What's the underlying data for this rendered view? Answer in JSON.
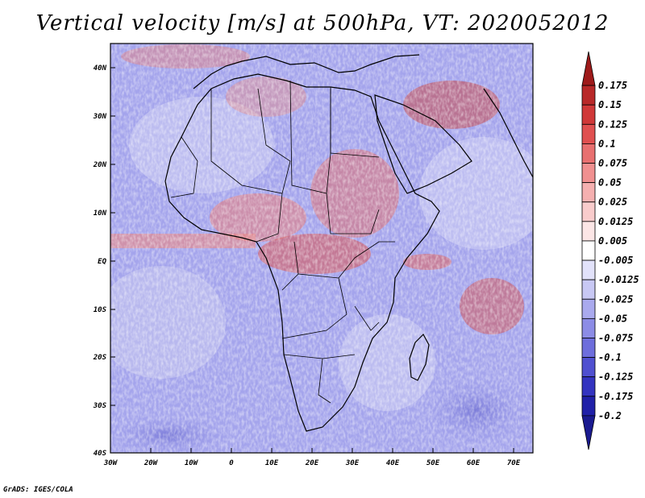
{
  "title": "Vertical velocity [m/s] at 500hPa, VT: 2020052012",
  "footer": "GrADS: IGES/COLA",
  "map": {
    "lat_labels": [
      "40N",
      "30N",
      "20N",
      "10N",
      "EQ",
      "10S",
      "20S",
      "30S",
      "40S"
    ],
    "lon_labels": [
      "30W",
      "20W",
      "10W",
      "0",
      "10E",
      "20E",
      "30E",
      "40E",
      "50E",
      "60E",
      "70E"
    ],
    "lat_range": [
      -40,
      45
    ],
    "lon_range": [
      -30,
      75
    ]
  },
  "colorbar": {
    "levels": [
      "0.175",
      "0.15",
      "0.125",
      "0.1",
      "0.075",
      "0.05",
      "0.025",
      "0.0125",
      "0.005",
      "-0.005",
      "-0.0125",
      "-0.025",
      "-0.05",
      "-0.075",
      "-0.1",
      "-0.125",
      "-0.175",
      "-0.2"
    ],
    "colors": [
      "#9e1a1a",
      "#b82828",
      "#d03838",
      "#e05050",
      "#e87070",
      "#f09090",
      "#f5b0b0",
      "#f9cccc",
      "#fce6e6",
      "#ffffff",
      "#e2e2fa",
      "#c8c8f4",
      "#aaaaee",
      "#8c8ce6",
      "#6e6edc",
      "#5050d0",
      "#3434c0",
      "#2020a8",
      "#1a1a90"
    ]
  },
  "colors": {
    "neutral_blue": "#a0a0ec",
    "red_zone": "#e06666",
    "coast": "#000000"
  }
}
